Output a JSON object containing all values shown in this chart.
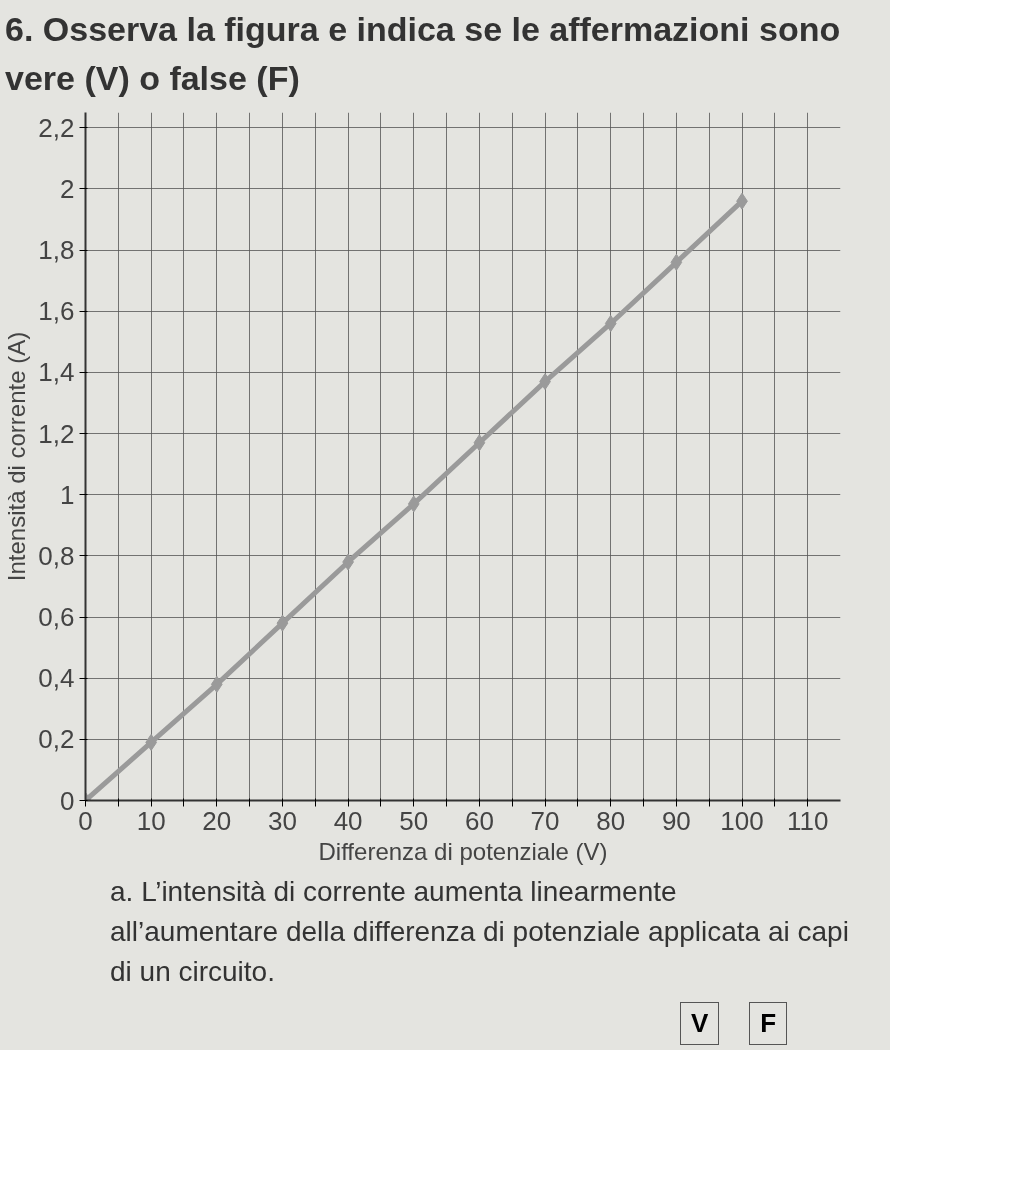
{
  "chart_data": {
    "type": "line",
    "title": "6. Osserva la figura e indica se le affermazioni sono vere (V) o false (F)",
    "xlabel": "Differenza di potenziale (V)",
    "ylabel": "Intensità di corrente (A)",
    "x": [
      0,
      10,
      20,
      30,
      40,
      50,
      60,
      70,
      80,
      90,
      100
    ],
    "series": [
      {
        "color": "#9a9a9a",
        "values": [
          0,
          0.19,
          0.38,
          0.58,
          0.78,
          0.97,
          1.17,
          1.37,
          1.56,
          1.76,
          1.96
        ]
      }
    ],
    "marker": "diamond",
    "line_style": "solid",
    "grid": true,
    "xlim": [
      0,
      115
    ],
    "ylim": [
      0,
      2.25
    ],
    "xticks": [
      0,
      {
        "value": 5,
        "label": null
      },
      10,
      {
        "value": 15,
        "label": null
      },
      20,
      {
        "value": 25,
        "label": null
      },
      30,
      {
        "value": 35,
        "label": null
      },
      40,
      {
        "value": 45,
        "label": null
      },
      50,
      {
        "value": 55,
        "label": null
      },
      60,
      {
        "value": 65,
        "label": null
      },
      70,
      {
        "value": 75,
        "label": null
      },
      80,
      {
        "value": 85,
        "label": null
      },
      90,
      {
        "value": 95,
        "label": null
      },
      100,
      {
        "value": 105,
        "label": null
      },
      110
    ],
    "yticks": [
      0,
      {
        "value": 0.2,
        "label": "0,2"
      },
      {
        "value": 0.4,
        "label": "0,4"
      },
      {
        "value": 0.6,
        "label": "0,6"
      },
      {
        "value": 0.8,
        "label": "0,8"
      },
      1,
      {
        "value": 1.2,
        "label": "1,2"
      },
      {
        "value": 1.4,
        "label": "1,4"
      },
      {
        "value": 1.6,
        "label": "1,6"
      },
      {
        "value": 1.8,
        "label": "1,8"
      },
      2,
      {
        "value": 2.2,
        "label": "2,2"
      }
    ],
    "annotations": [
      "a. L’intensità di corrente aumenta linearmente all’aumentare della differenza di potenziale applicata ai capi di un circuito.",
      "V",
      "F"
    ]
  }
}
